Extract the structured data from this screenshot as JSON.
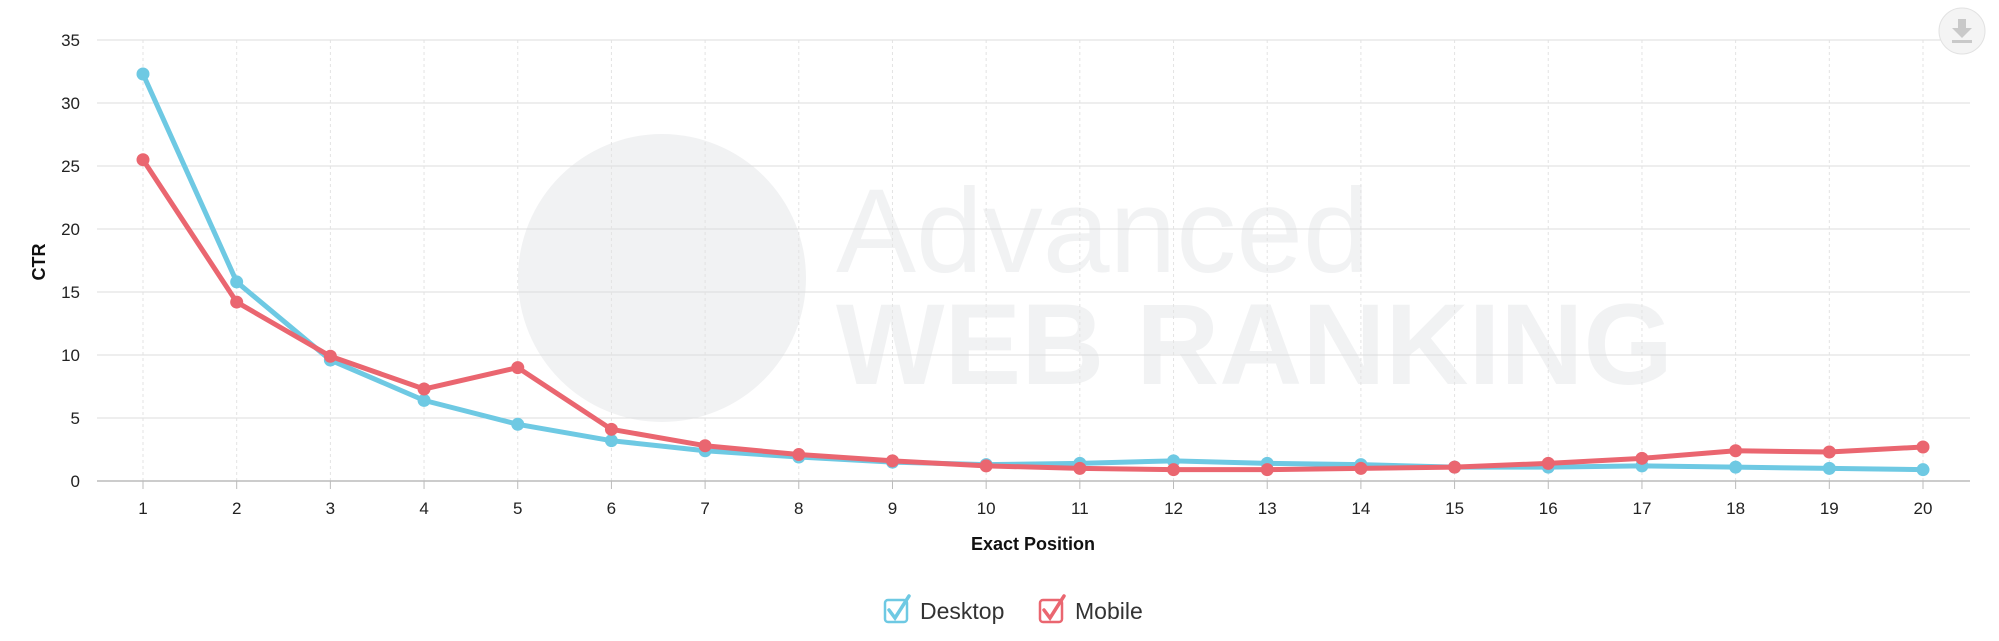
{
  "chart_data": {
    "type": "line",
    "xlabel": "Exact Position",
    "ylabel": "CTR",
    "x": [
      "1",
      "2",
      "3",
      "4",
      "5",
      "6",
      "7",
      "8",
      "9",
      "10",
      "11",
      "12",
      "13",
      "14",
      "15",
      "16",
      "17",
      "18",
      "19",
      "20"
    ],
    "ylim": [
      0,
      35
    ],
    "yticks": [
      "0",
      "5",
      "10",
      "15",
      "20",
      "25",
      "30",
      "35"
    ],
    "grid": true,
    "legend_position": "bottom-center",
    "series": [
      {
        "name": "Desktop",
        "color": "#6ec9e3",
        "values": [
          32.3,
          15.8,
          9.6,
          6.4,
          4.5,
          3.2,
          2.4,
          1.9,
          1.5,
          1.3,
          1.4,
          1.6,
          1.4,
          1.3,
          1.1,
          1.1,
          1.2,
          1.1,
          1.0,
          0.9
        ]
      },
      {
        "name": "Mobile",
        "color": "#ea6670",
        "values": [
          25.5,
          14.2,
          9.9,
          7.3,
          9.0,
          4.1,
          2.8,
          2.1,
          1.6,
          1.2,
          1.0,
          0.9,
          0.9,
          1.0,
          1.1,
          1.4,
          1.8,
          2.4,
          2.3,
          2.7
        ]
      }
    ]
  },
  "watermark": {
    "line1": "Advanced",
    "line2": "WEB RANKING"
  },
  "toolbar": {
    "download_icon": "download-icon"
  }
}
